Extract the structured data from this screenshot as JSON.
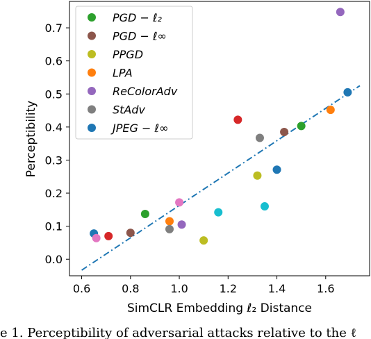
{
  "chart_data": {
    "type": "scatter",
    "xlabel": "SimCLR Embedding ℓ₂ Distance",
    "ylabel": "Perceptibility",
    "xlim": [
      0.55,
      1.78
    ],
    "ylim": [
      -0.05,
      0.78
    ],
    "xticks": [
      0.6,
      0.8,
      1.0,
      1.2,
      1.4,
      1.6
    ],
    "xtick_labels": [
      "0.6",
      "0.8",
      "1.0",
      "1.2",
      "1.4",
      "1.6"
    ],
    "yticks": [
      0.0,
      0.1,
      0.2,
      0.3,
      0.4,
      0.5,
      0.6,
      0.7
    ],
    "ytick_labels": [
      "0.0",
      "0.1",
      "0.2",
      "0.3",
      "0.4",
      "0.5",
      "0.6",
      "0.7"
    ],
    "grid": false,
    "legend_position": "top-left",
    "series": [
      {
        "name": "PGD − ℓ₂",
        "color": "#2ca02c",
        "points": [
          [
            0.86,
            0.137
          ],
          [
            1.5,
            0.403
          ]
        ]
      },
      {
        "name": "PGD − ℓ∞",
        "color": "#8c564b",
        "points": [
          [
            0.8,
            0.08
          ],
          [
            1.43,
            0.385
          ]
        ]
      },
      {
        "name": "PPGD",
        "color": "#bcbd22",
        "points": [
          [
            1.1,
            0.057
          ],
          [
            1.32,
            0.253
          ]
        ]
      },
      {
        "name": "LPA",
        "color": "#ff7f0e",
        "points": [
          [
            0.96,
            0.115
          ],
          [
            1.62,
            0.452
          ]
        ]
      },
      {
        "name": "ReColorAdv",
        "color": "#9467bd",
        "points": [
          [
            1.01,
            0.105
          ],
          [
            1.66,
            0.748
          ]
        ]
      },
      {
        "name": "StAdv",
        "color": "#7f7f7f",
        "points": [
          [
            0.96,
            0.091
          ],
          [
            1.33,
            0.367
          ]
        ]
      },
      {
        "name": "JPEG − ℓ∞",
        "color": "#1f77b4",
        "points": [
          [
            0.65,
            0.078
          ],
          [
            1.4,
            0.271
          ],
          [
            1.69,
            0.505
          ]
        ]
      }
    ],
    "extra_points": [
      {
        "color": "#d62728",
        "points": [
          [
            0.71,
            0.07
          ],
          [
            1.24,
            0.422
          ]
        ]
      },
      {
        "color": "#e377c2",
        "points": [
          [
            0.66,
            0.064
          ],
          [
            1.0,
            0.172
          ]
        ]
      },
      {
        "color": "#17becf",
        "points": [
          [
            1.16,
            0.142
          ],
          [
            1.35,
            0.16
          ]
        ]
      }
    ],
    "fit_line": {
      "color": "#1f77b4",
      "style": "dash-dot",
      "x": [
        0.6,
        1.74
      ],
      "y": [
        -0.033,
        0.525
      ]
    }
  },
  "caption": "e 1. Perceptibility of adversarial attacks relative to the ℓ"
}
